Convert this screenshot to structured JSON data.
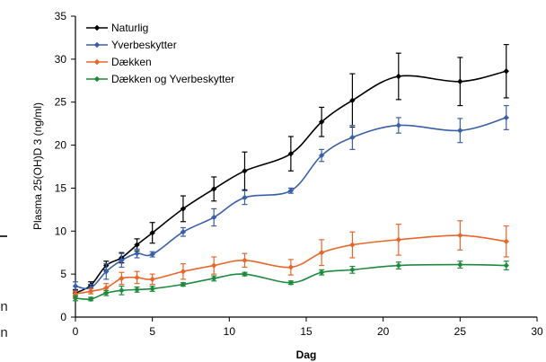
{
  "chart_data": {
    "type": "line",
    "title": "",
    "xlabel": "Dag",
    "ylabel": "Plasma 25(OH)D 3 (ng/ml)",
    "xlim": [
      0,
      30
    ],
    "ylim": [
      0,
      35
    ],
    "xticks": [
      0,
      5,
      10,
      15,
      20,
      25,
      30
    ],
    "yticks": [
      0,
      5,
      10,
      15,
      20,
      25,
      30,
      35
    ],
    "grid": false,
    "legend_position": "top-left",
    "series": [
      {
        "name": "Naturlig",
        "color": "#000000",
        "x": [
          0,
          1,
          2,
          3,
          4,
          5,
          7,
          9,
          11,
          14,
          16,
          18,
          21,
          25,
          28
        ],
        "y": [
          2.8,
          3.7,
          6.0,
          6.9,
          8.4,
          9.8,
          12.6,
          14.9,
          17.0,
          19.0,
          22.7,
          25.2,
          28.0,
          27.4,
          28.6
        ],
        "err": [
          0.4,
          0.4,
          0.5,
          0.6,
          0.7,
          1.2,
          1.5,
          1.4,
          2.2,
          2.0,
          1.7,
          3.1,
          2.7,
          2.8,
          3.1
        ]
      },
      {
        "name": "Yverbeskytter",
        "color": "#3a5fa8",
        "x": [
          0,
          1,
          2,
          3,
          4,
          5,
          7,
          9,
          11,
          14,
          16,
          18,
          21,
          25,
          28
        ],
        "y": [
          3.6,
          3.4,
          5.3,
          6.6,
          7.4,
          7.3,
          9.9,
          11.6,
          13.9,
          14.7,
          18.8,
          20.9,
          22.3,
          21.7,
          23.2
        ],
        "err": [
          0.5,
          0.4,
          0.9,
          0.8,
          0.5,
          0.3,
          0.5,
          1.0,
          0.8,
          0.3,
          0.7,
          1.4,
          0.9,
          1.4,
          1.4
        ]
      },
      {
        "name": "Dækken",
        "color": "#e8662a",
        "x": [
          0,
          1,
          2,
          3,
          4,
          5,
          7,
          9,
          11,
          14,
          16,
          18,
          21,
          25,
          28
        ],
        "y": [
          2.7,
          3.0,
          3.4,
          4.5,
          4.6,
          4.4,
          5.3,
          6.0,
          6.6,
          5.8,
          7.5,
          8.4,
          9.0,
          9.5,
          8.8
        ],
        "err": [
          0.3,
          0.3,
          0.5,
          0.7,
          0.7,
          0.6,
          0.9,
          1.0,
          0.8,
          0.9,
          1.5,
          1.5,
          1.8,
          1.7,
          1.8
        ]
      },
      {
        "name": "Dækken og Yverbeskytter",
        "color": "#1e8a3e",
        "x": [
          0,
          1,
          2,
          3,
          4,
          5,
          7,
          9,
          11,
          14,
          16,
          18,
          21,
          25,
          28
        ],
        "y": [
          2.2,
          2.1,
          2.8,
          3.1,
          3.2,
          3.3,
          3.8,
          4.5,
          5.0,
          4.0,
          5.2,
          5.5,
          6.0,
          6.1,
          6.0
        ],
        "err": [
          0.3,
          0.2,
          0.3,
          0.5,
          0.3,
          0.3,
          0.2,
          0.3,
          0.2,
          0.2,
          0.3,
          0.4,
          0.4,
          0.4,
          0.5
        ]
      }
    ]
  },
  "cropped_text": {
    "line1": "en",
    "line2": "en"
  }
}
